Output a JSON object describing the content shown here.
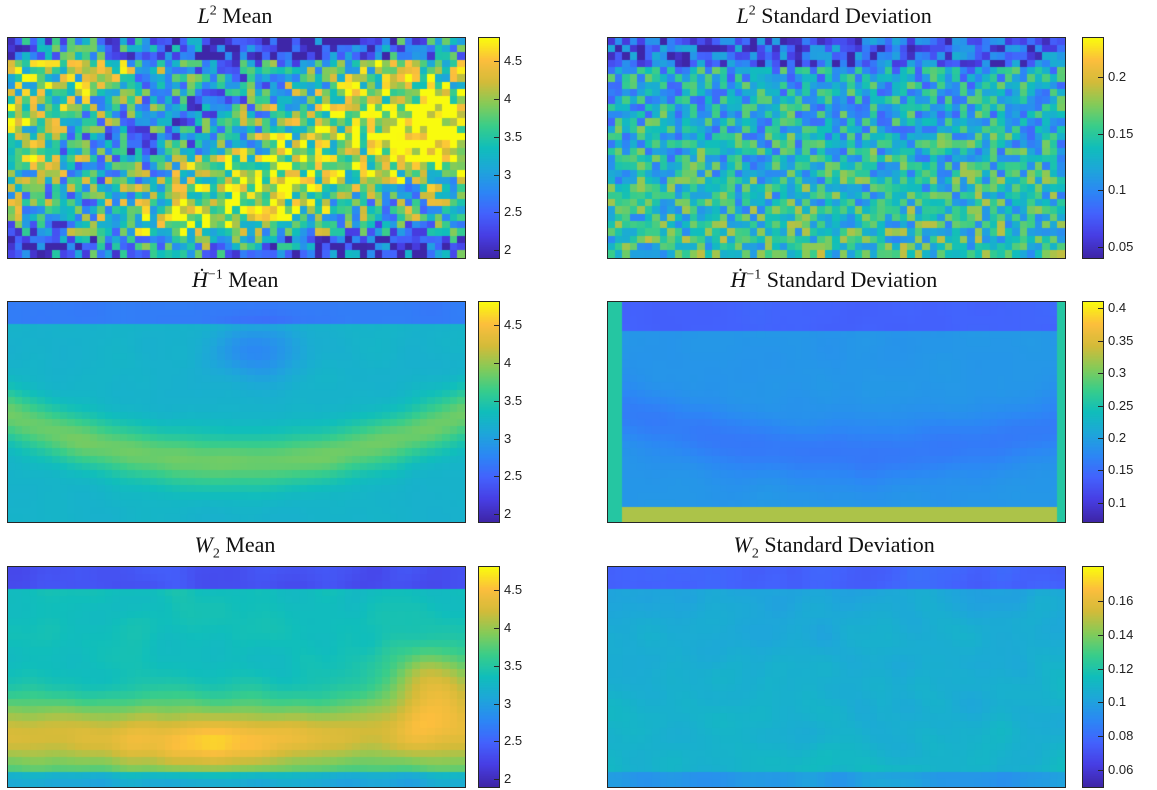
{
  "colormap": "parula",
  "chart_data": [
    {
      "type": "heatmap",
      "title": {
        "norm": "L",
        "sup": "2",
        "label": "Mean"
      },
      "rows": 30,
      "cols": 61,
      "pattern": "noisy",
      "clim": [
        1.9,
        4.8
      ],
      "colorbar_ticks": [
        2,
        2.5,
        3,
        3.5,
        4,
        4.5
      ]
    },
    {
      "type": "heatmap",
      "title": {
        "norm": "L",
        "sup": "2",
        "label": "Standard Deviation"
      },
      "rows": 30,
      "cols": 61,
      "pattern": "noisy-low",
      "clim": [
        0.04,
        0.235
      ],
      "colorbar_ticks": [
        0.05,
        0.1,
        0.15,
        0.2
      ]
    },
    {
      "type": "heatmap",
      "title": {
        "norm": "H",
        "sup": "−1",
        "dot": true,
        "label": "Mean"
      },
      "rows": 30,
      "cols": 61,
      "pattern": "smooth-arc",
      "clim": [
        1.9,
        4.8
      ],
      "colorbar_ticks": [
        2,
        2.5,
        3,
        3.5,
        4,
        4.5
      ]
    },
    {
      "type": "heatmap",
      "title": {
        "norm": "H",
        "sup": "−1",
        "dot": true,
        "label": "Standard Deviation"
      },
      "rows": 30,
      "cols": 61,
      "pattern": "smooth-edge",
      "clim": [
        0.07,
        0.41
      ],
      "colorbar_ticks": [
        0.1,
        0.15,
        0.2,
        0.25,
        0.3,
        0.35,
        0.4
      ]
    },
    {
      "type": "heatmap",
      "title": {
        "norm": "W",
        "sub": "2",
        "label": "Mean"
      },
      "rows": 30,
      "cols": 61,
      "pattern": "smooth-band",
      "clim": [
        1.9,
        4.8
      ],
      "colorbar_ticks": [
        2,
        2.5,
        3,
        3.5,
        4,
        4.5
      ]
    },
    {
      "type": "heatmap",
      "title": {
        "norm": "W",
        "sub": "2",
        "label": "Standard Deviation"
      },
      "rows": 30,
      "cols": 61,
      "pattern": "smooth-low",
      "clim": [
        0.05,
        0.18
      ],
      "colorbar_ticks": [
        0.06,
        0.08,
        0.1,
        0.12,
        0.14,
        0.16
      ]
    }
  ]
}
